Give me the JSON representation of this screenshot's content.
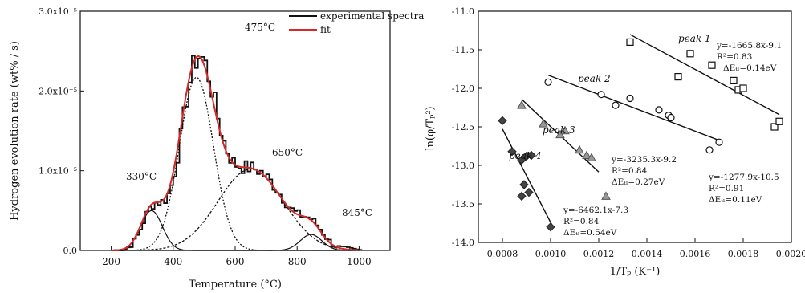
{
  "colors": {
    "axis": "#111111",
    "experimental": "#111111",
    "fit": "#d42a2a",
    "component": "#111111"
  },
  "chart_data": [
    {
      "type": "line",
      "xlabel": "Temperature (°C)",
      "ylabel": "Hydrogen evolution rate (wt% / s)",
      "xlim": [
        100,
        1100
      ],
      "ylim": [
        0,
        3e-05
      ],
      "x_ticks": [
        "200",
        "400",
        "600",
        "800",
        "1000"
      ],
      "y_ticks": [
        "0.0",
        "1.0x10⁻⁵",
        "2.0x10⁻⁵",
        "3.0x10⁻⁵"
      ],
      "legend": {
        "position": "top-right",
        "entries": [
          "experimental spectra",
          "fit"
        ]
      },
      "peak_labels": [
        "330°C",
        "475°C",
        "650°C",
        "845°C"
      ],
      "components": [
        {
          "center": 330,
          "amplitude": 5e-06,
          "width": 35
        },
        {
          "center": 475,
          "amplitude": 2.17e-05,
          "width": 55
        },
        {
          "center": 650,
          "amplitude": 1.02e-05,
          "width": 105
        },
        {
          "center": 845,
          "amplitude": 2e-06,
          "width": 35
        }
      ],
      "series": [
        {
          "name": "experimental spectra",
          "kind": "step",
          "x_step": 10
        },
        {
          "name": "fit",
          "kind": "line"
        }
      ]
    },
    {
      "type": "scatter",
      "xlabel": "1/Tₚ (K⁻¹)",
      "ylabel": "ln(φ/Tₚ²)",
      "xlim": [
        0.0007,
        0.002
      ],
      "ylim": [
        -14.0,
        -11.0
      ],
      "x_ticks": [
        "0.0008",
        "0.0010",
        "0.0012",
        "0.0014",
        "0.0016",
        "0.0018",
        "0.0020"
      ],
      "y_ticks": [
        "-11.0",
        "-11.5",
        "-12.0",
        "-12.5",
        "-13.0",
        "-13.5",
        "-14.0"
      ],
      "series": [
        {
          "name": "peak 1",
          "marker": "square",
          "points": [
            [
              0.00133,
              -11.4
            ],
            [
              0.00153,
              -11.85
            ],
            [
              0.00158,
              -11.55
            ],
            [
              0.00167,
              -11.7
            ],
            [
              0.00176,
              -11.9
            ],
            [
              0.00178,
              -12.02
            ],
            [
              0.0018,
              -12.0
            ],
            [
              0.00193,
              -12.5
            ],
            [
              0.00195,
              -12.43
            ]
          ],
          "fit": {
            "slope": -1665.8,
            "intercept": -9.1,
            "x_range": [
              0.00133,
              0.00195
            ]
          },
          "annotation": [
            "y=-1665.8x-9.1",
            "R²=0.83",
            "ΔEₜₗ=0.14eV"
          ]
        },
        {
          "name": "peak 2",
          "marker": "circle",
          "points": [
            [
              0.00099,
              -11.92
            ],
            [
              0.00121,
              -12.08
            ],
            [
              0.00127,
              -12.22
            ],
            [
              0.00133,
              -12.13
            ],
            [
              0.00145,
              -12.28
            ],
            [
              0.00149,
              -12.35
            ],
            [
              0.0015,
              -12.38
            ],
            [
              0.00166,
              -12.8
            ],
            [
              0.0017,
              -12.7
            ]
          ],
          "fit": {
            "slope": -1277.9,
            "intercept": -10.5,
            "x_range": [
              0.00099,
              0.0017
            ]
          },
          "annotation": [
            "y=-1277.9x-10.5",
            "R²=0.91",
            "ΔEₜₗ=0.11eV"
          ]
        },
        {
          "name": "peak 3",
          "marker": "triangle",
          "points": [
            [
              0.00088,
              -12.22
            ],
            [
              0.00097,
              -12.46
            ],
            [
              0.00104,
              -12.6
            ],
            [
              0.00106,
              -12.55
            ],
            [
              0.00112,
              -12.8
            ],
            [
              0.00115,
              -12.87
            ],
            [
              0.00117,
              -12.9
            ],
            [
              0.00123,
              -13.4
            ]
          ],
          "fit": {
            "slope": -3235.3,
            "intercept": -9.2,
            "x_range": [
              0.00088,
              0.0012
            ]
          },
          "annotation": [
            "y=-3235.3x-9.2",
            "R²=0.84",
            "ΔEₜₗ=0.27eV"
          ]
        },
        {
          "name": "peak 4",
          "marker": "diamond",
          "points": [
            [
              0.0008,
              -12.42
            ],
            [
              0.00084,
              -12.82
            ],
            [
              0.00088,
              -12.93
            ],
            [
              0.00089,
              -13.25
            ],
            [
              0.0009,
              -12.88
            ],
            [
              0.00092,
              -12.87
            ],
            [
              0.00091,
              -13.35
            ],
            [
              0.00088,
              -13.4
            ],
            [
              0.001,
              -13.8
            ]
          ],
          "fit": {
            "slope": -6462.1,
            "intercept": -7.3,
            "x_range": [
              0.0008,
              0.00101
            ]
          },
          "annotation": [
            "y=-6462.1x-7.3",
            "R²=0.84",
            "ΔEₜₗ=0.54eV"
          ]
        }
      ]
    }
  ]
}
